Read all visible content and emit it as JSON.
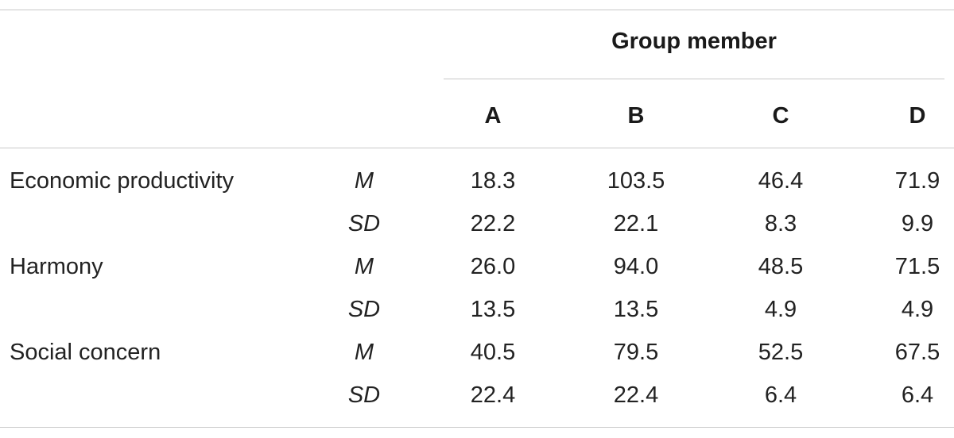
{
  "table": {
    "group_header": "Group member",
    "columns": [
      "A",
      "B",
      "C",
      "D"
    ],
    "rows": [
      {
        "label": "Economic productivity",
        "stats": [
          {
            "stat": "M",
            "values": [
              "18.3",
              "103.5",
              "46.4",
              "71.9"
            ]
          },
          {
            "stat": "SD",
            "values": [
              "22.2",
              "22.1",
              "8.3",
              "9.9"
            ]
          }
        ]
      },
      {
        "label": "Harmony",
        "stats": [
          {
            "stat": "M",
            "values": [
              "26.0",
              "94.0",
              "48.5",
              "71.5"
            ]
          },
          {
            "stat": "SD",
            "values": [
              "13.5",
              "13.5",
              "4.9",
              "4.9"
            ]
          }
        ]
      },
      {
        "label": "Social concern",
        "stats": [
          {
            "stat": "M",
            "values": [
              "40.5",
              "79.5",
              "52.5",
              "67.5"
            ]
          },
          {
            "stat": "SD",
            "values": [
              "22.4",
              "22.4",
              "6.4",
              "6.4"
            ]
          }
        ]
      }
    ]
  }
}
